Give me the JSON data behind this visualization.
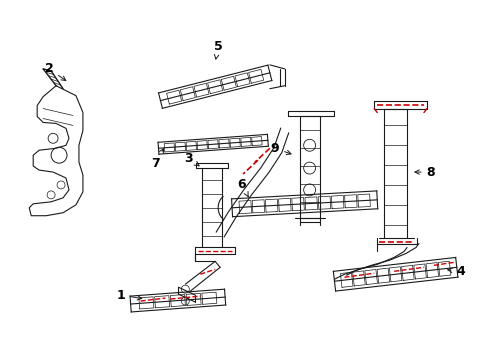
{
  "background_color": "#ffffff",
  "line_color": "#1a1a1a",
  "red_color": "#cc0000",
  "label_color": "#000000",
  "fig_width": 4.89,
  "fig_height": 3.6,
  "dpi": 100
}
